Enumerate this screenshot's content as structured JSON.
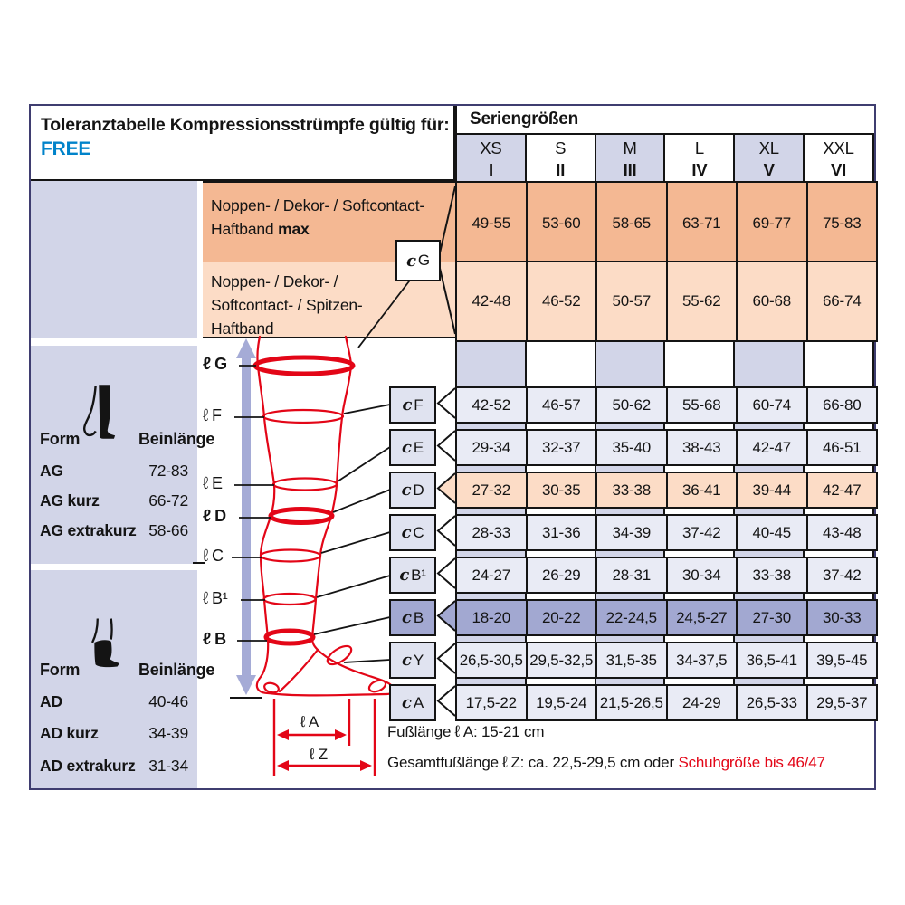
{
  "title": {
    "text": "Toleranztabelle Kompressionsstrümpfe gültig für:",
    "brand": "FREE"
  },
  "series_header": {
    "title": "Seriengrößen",
    "sizes": [
      {
        "name": "XS",
        "roman": "I"
      },
      {
        "name": "S",
        "roman": "II"
      },
      {
        "name": "M",
        "roman": "III"
      },
      {
        "name": "L",
        "roman": "IV"
      },
      {
        "name": "XL",
        "roman": "V"
      },
      {
        "name": "XXL",
        "roman": "VI"
      }
    ]
  },
  "haftband_rows": [
    {
      "lines": [
        {
          "text": "Noppen- / Dekor- / Softcontact-",
          "bold": ""
        },
        {
          "text": "Haftband ",
          "bold": "max"
        }
      ],
      "values": [
        "49-55",
        "53-60",
        "58-65",
        "63-71",
        "69-77",
        "75-83"
      ]
    },
    {
      "lines": [
        {
          "text": "Noppen- / Dekor- /",
          "bold": ""
        },
        {
          "text": "Softcontact- / Spitzen-",
          "bold": ""
        },
        {
          "text": "Haftband",
          "bold": ""
        }
      ],
      "values": [
        "42-48",
        "46-52",
        "50-57",
        "55-62",
        "60-68",
        "66-74"
      ]
    }
  ],
  "measure_symbol": "c",
  "length_symbol": "ℓ",
  "g_box_label": "G",
  "measure_rows": [
    {
      "label": "F",
      "values": [
        "42-52",
        "46-57",
        "50-62",
        "55-68",
        "60-74",
        "66-80"
      ],
      "highlight": "none"
    },
    {
      "label": "E",
      "values": [
        "29-34",
        "32-37",
        "35-40",
        "38-43",
        "42-47",
        "46-51"
      ],
      "highlight": "none"
    },
    {
      "label": "D",
      "values": [
        "27-32",
        "30-35",
        "33-38",
        "36-41",
        "39-44",
        "42-47"
      ],
      "highlight": "peach"
    },
    {
      "label": "C",
      "values": [
        "28-33",
        "31-36",
        "34-39",
        "37-42",
        "40-45",
        "43-48"
      ],
      "highlight": "none"
    },
    {
      "label": "B¹",
      "values": [
        "24-27",
        "26-29",
        "28-31",
        "30-34",
        "33-38",
        "37-42"
      ],
      "highlight": "none"
    },
    {
      "label": "B",
      "values": [
        "18-20",
        "20-22",
        "22-24,5",
        "24,5-27",
        "27-30",
        "30-33"
      ],
      "highlight": "purple"
    },
    {
      "label": "Y",
      "values": [
        "26,5-30,5",
        "29,5-32,5",
        "31,5-35",
        "34-37,5",
        "36,5-41",
        "39,5-45"
      ],
      "highlight": "none"
    },
    {
      "label": "A",
      "values": [
        "17,5-22",
        "19,5-24",
        "21,5-26,5",
        "24-29",
        "26,5-33",
        "29,5-37"
      ],
      "highlight": "none"
    }
  ],
  "leg_labels": [
    {
      "text": "G",
      "bold": true
    },
    {
      "text": "F",
      "bold": false
    },
    {
      "text": "E",
      "bold": false
    },
    {
      "text": "D",
      "bold": true
    },
    {
      "text": "C",
      "bold": false
    },
    {
      "text": "B¹",
      "bold": false
    },
    {
      "text": "B",
      "bold": true
    }
  ],
  "left_panels": [
    {
      "form_label": "Form",
      "length_label": "Beinlänge",
      "rows": [
        {
          "form": "AG",
          "range": "72-83"
        },
        {
          "form": "AG kurz",
          "range": "66-72"
        },
        {
          "form": "AG extrakurz",
          "range": "58-66"
        }
      ]
    },
    {
      "form_label": "Form",
      "length_label": "Beinlänge",
      "rows": [
        {
          "form": "AD",
          "range": "40-46"
        },
        {
          "form": "AD kurz",
          "range": "34-39"
        },
        {
          "form": "AD extrakurz",
          "range": "31-34"
        }
      ]
    }
  ],
  "foot_dimensions": {
    "a_label": "ℓ A",
    "z_label": "ℓ Z"
  },
  "footnotes": {
    "line1_prefix": "Fußlänge",
    "line1_symbol": "ℓ",
    "line1_rest": "A: 15-21 cm",
    "line2_prefix": "Gesamtfußlänge",
    "line2_symbol": "ℓ",
    "line2_rest": "Z: ca. 22,5-29,5 cm oder",
    "line2_red": "Schuhgröße bis 46/47"
  },
  "colors": {
    "salmon": "#f4b893",
    "peach": "#fcdcc6",
    "lavender": "#d2d5e8",
    "lavender_pale": "#e9ebf5",
    "purple_dark": "#a2a8d1",
    "box_fill": "#e0e3f0",
    "red": "#e30617",
    "blue": "#0083ca",
    "navy": "#3f3d70",
    "line": "#141414"
  }
}
